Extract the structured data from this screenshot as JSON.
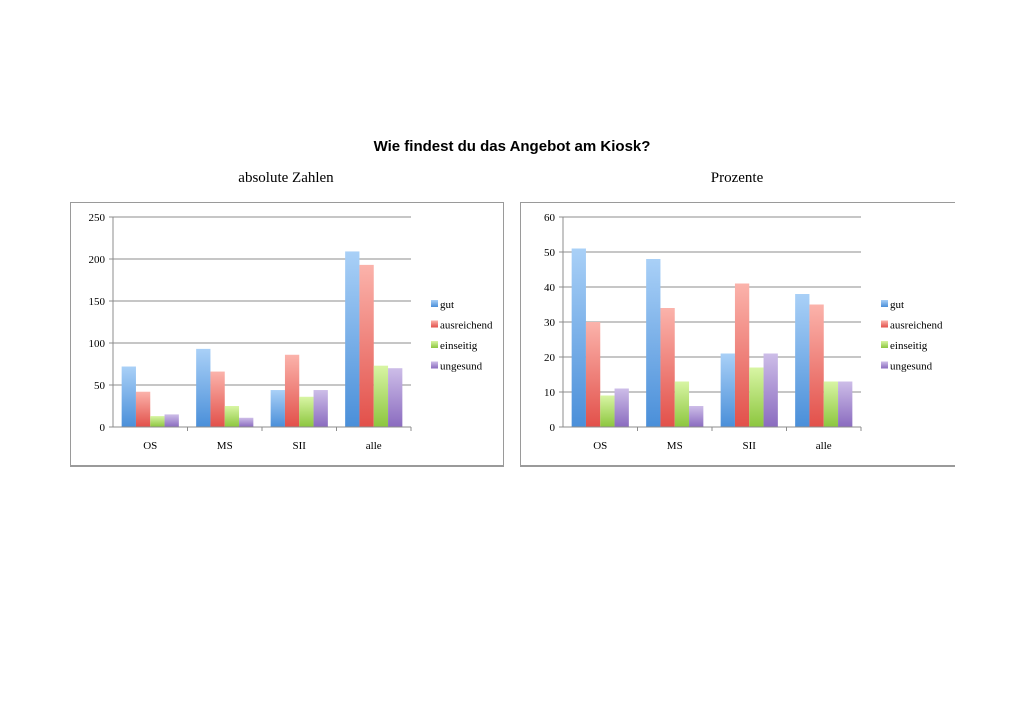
{
  "title": "Wie findest du das Angebot am Kiosk?",
  "chart_data": [
    {
      "type": "bar",
      "title": "absolute Zahlen",
      "categories": [
        "OS",
        "MS",
        "SII",
        "alle"
      ],
      "series": [
        {
          "name": "gut",
          "values": [
            72,
            93,
            44,
            209
          ]
        },
        {
          "name": "ausreichend",
          "values": [
            42,
            66,
            86,
            193
          ]
        },
        {
          "name": "einseitig",
          "values": [
            13,
            25,
            36,
            73
          ]
        },
        {
          "name": "ungesund",
          "values": [
            15,
            11,
            44,
            70
          ]
        }
      ],
      "ylim": [
        0,
        250
      ],
      "yticks": [
        0,
        50,
        100,
        150,
        200,
        250
      ],
      "grid": true,
      "legend": "right",
      "xlabel": "",
      "ylabel": ""
    },
    {
      "type": "bar",
      "title": "Prozente",
      "categories": [
        "OS",
        "MS",
        "SII",
        "alle"
      ],
      "series": [
        {
          "name": "gut",
          "values": [
            51,
            48,
            21,
            38
          ]
        },
        {
          "name": "ausreichend",
          "values": [
            30,
            34,
            41,
            35
          ]
        },
        {
          "name": "einseitig",
          "values": [
            9,
            13,
            17,
            13
          ]
        },
        {
          "name": "ungesund",
          "values": [
            11,
            6,
            21,
            13
          ]
        }
      ],
      "ylim": [
        0,
        60
      ],
      "yticks": [
        0,
        10,
        20,
        30,
        40,
        50,
        60
      ],
      "grid": true,
      "legend": "right",
      "xlabel": "",
      "ylabel": ""
    }
  ],
  "colors": {
    "gut": [
      "#a9d0f7",
      "#4a8fd9"
    ],
    "ausreichend": [
      "#fbb3ab",
      "#e2504a"
    ],
    "einseitig": [
      "#d8f5a4",
      "#8cc63e"
    ],
    "ungesund": [
      "#cdbde8",
      "#8a6bbf"
    ]
  }
}
